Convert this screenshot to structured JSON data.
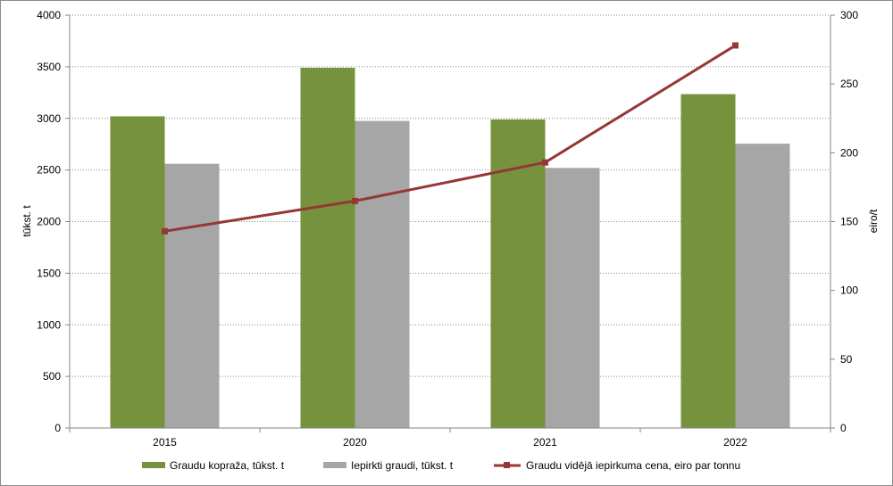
{
  "chart_data": {
    "type": "bar",
    "categories": [
      "2015",
      "2020",
      "2021",
      "2022"
    ],
    "series": [
      {
        "name": "Graudu kopraža, tūkst. t",
        "kind": "bar",
        "axis": "left",
        "color": "#76923c",
        "values": [
          3020,
          3490,
          2990,
          3235
        ]
      },
      {
        "name": "Iepirkti graudi, tūkst. t",
        "kind": "bar",
        "axis": "left",
        "color": "#a6a6a6",
        "values": [
          2560,
          2975,
          2520,
          2755
        ]
      },
      {
        "name": "Graudu vidējā iepirkuma cena, eiro par tonnu",
        "kind": "line",
        "axis": "right",
        "color": "#953735",
        "values": [
          143,
          165,
          193,
          278
        ]
      }
    ],
    "y_left": {
      "label": "tūkst. t",
      "min": 0,
      "max": 4000,
      "ticks": [
        "0",
        "500",
        "1000",
        "1500",
        "2000",
        "2500",
        "3000",
        "3500",
        "4000"
      ]
    },
    "y_right": {
      "label": "eiro/t",
      "min": 0,
      "max": 300,
      "ticks": [
        "0",
        "50",
        "100",
        "150",
        "200",
        "250",
        "300"
      ]
    },
    "grid": true,
    "legend": "bottom"
  }
}
